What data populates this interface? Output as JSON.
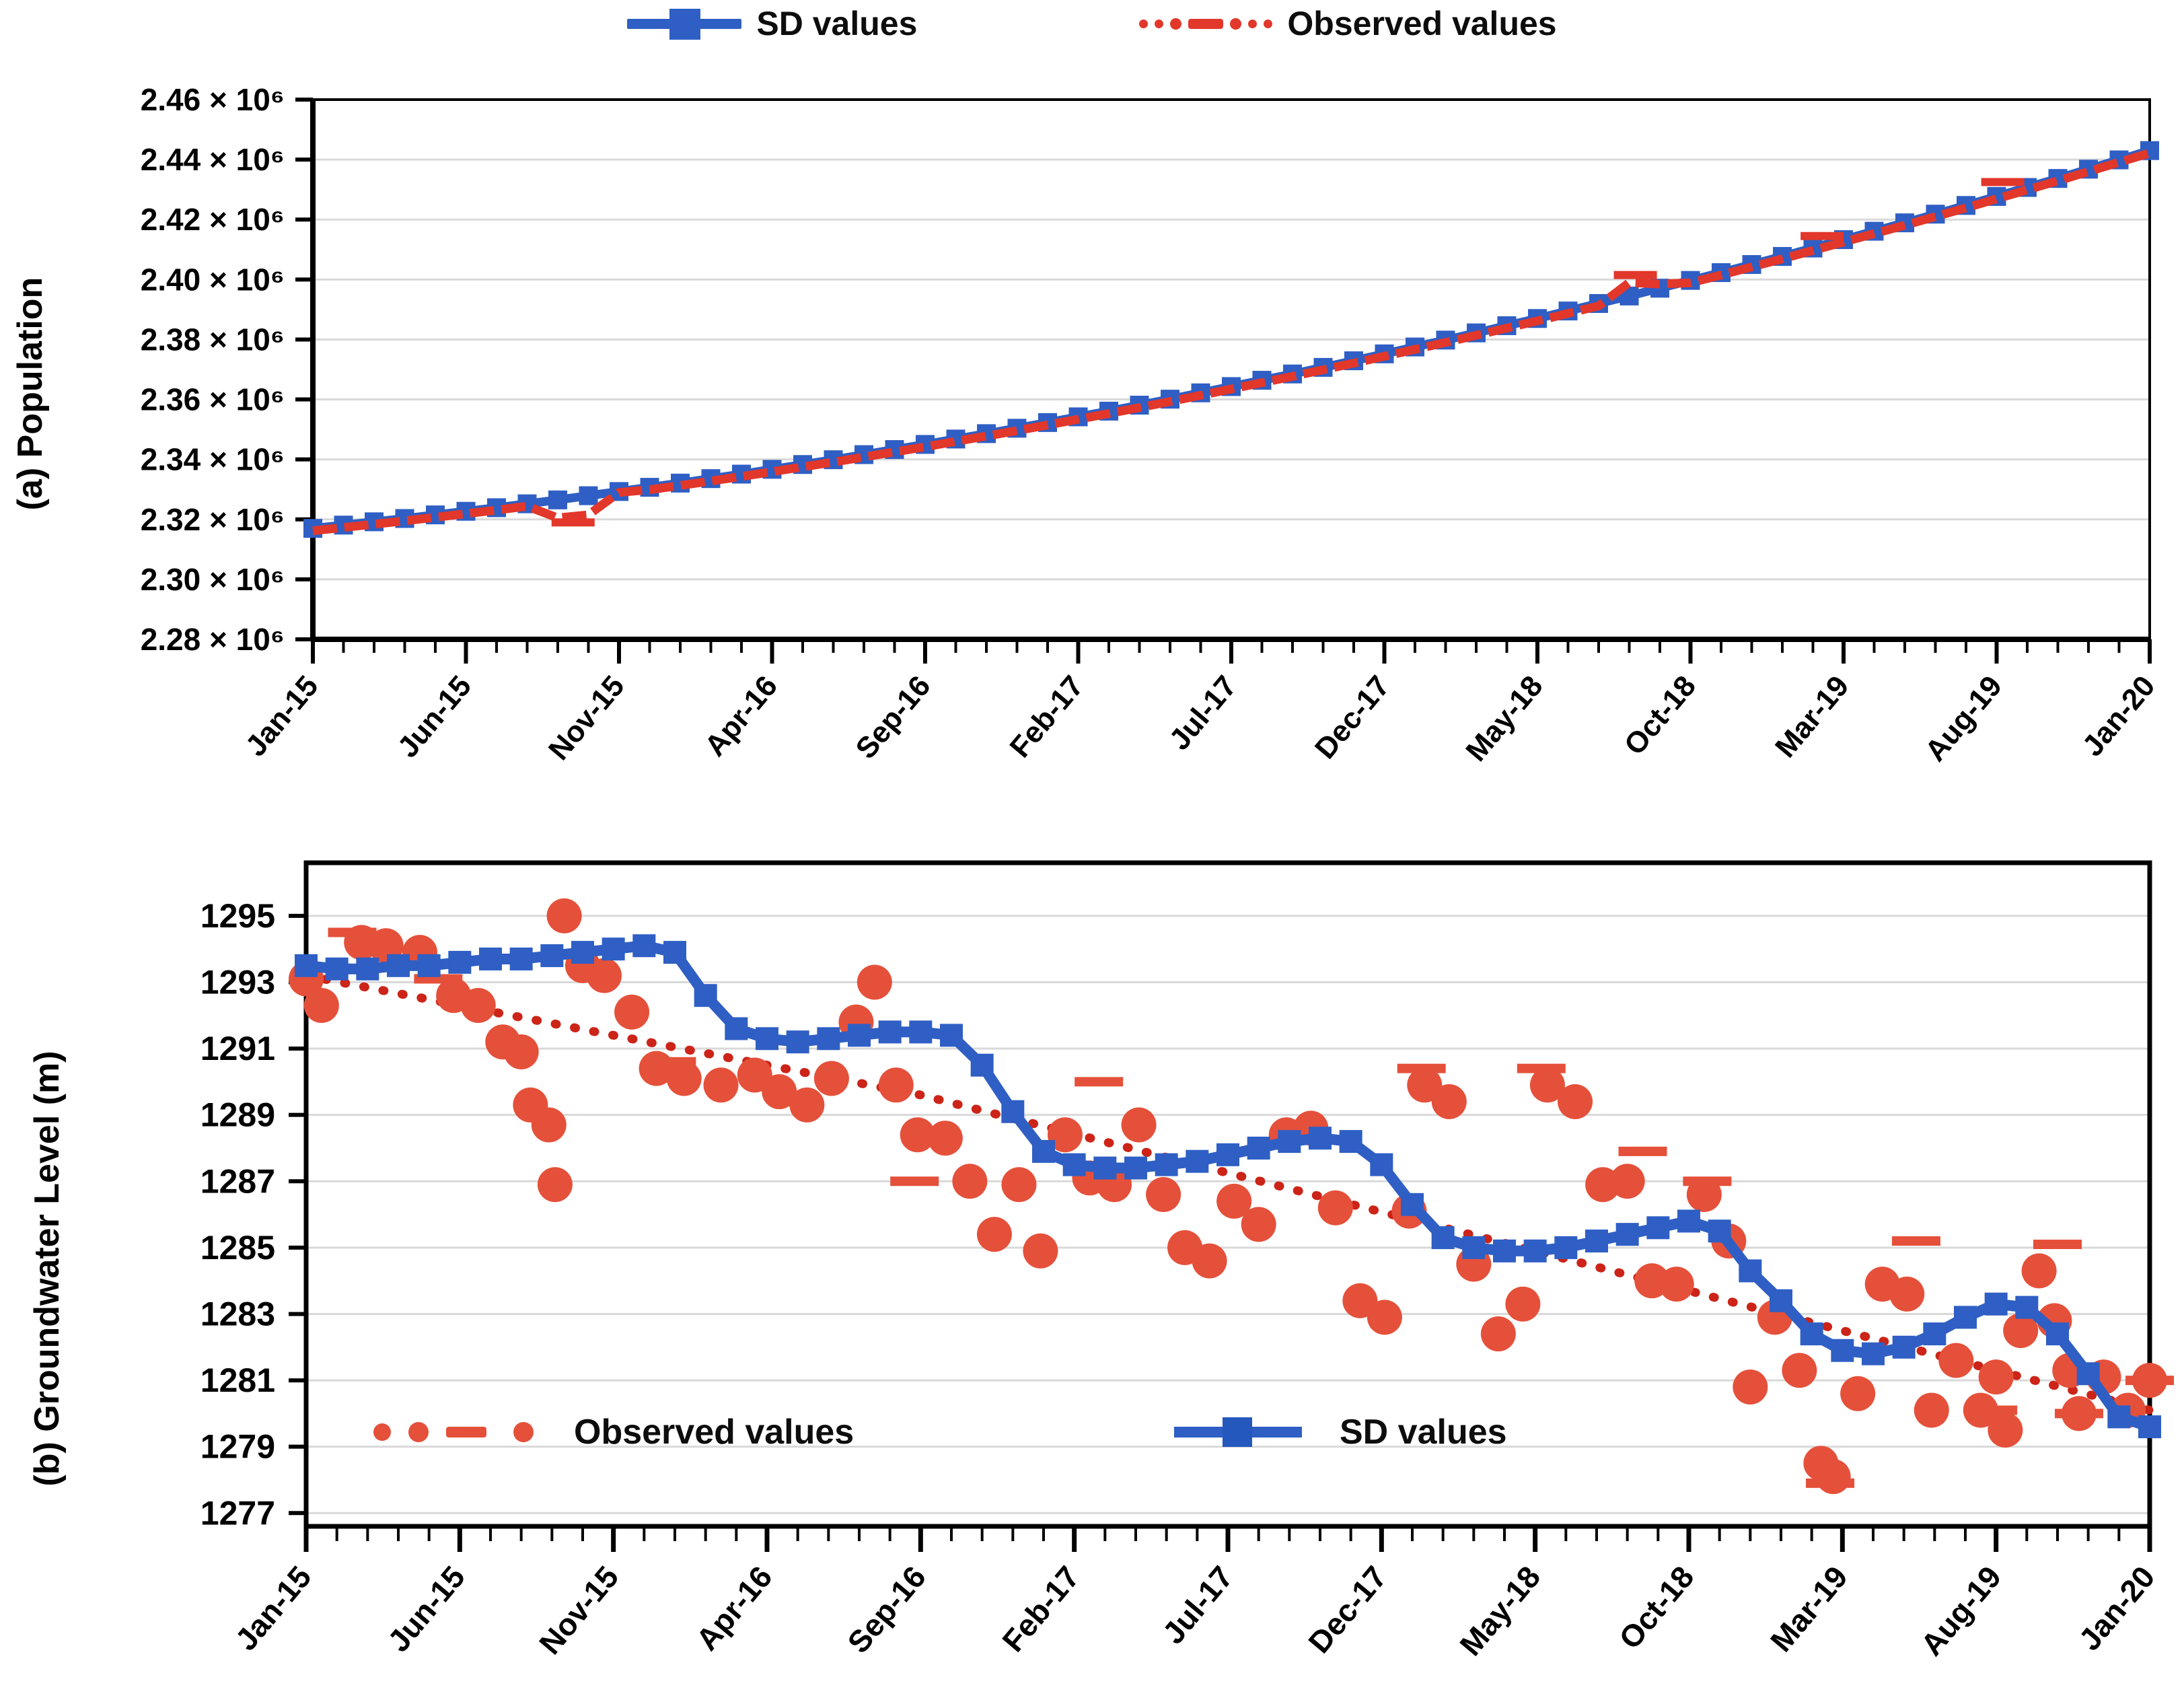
{
  "figure": {
    "legend_top": {
      "sd_label": "SD values",
      "observed_label": "Observed values"
    },
    "legend_bottom": {
      "observed_label": "Observed values",
      "sd_label": "SD values"
    },
    "colors": {
      "sd_blue": "#2f5fc4",
      "observed_red": "#e5503a",
      "trend_red": "#cc2418",
      "grid": "#d9d9d9",
      "axis": "#000000"
    }
  },
  "chart_data": [
    {
      "id": "population",
      "type": "line",
      "ylabel": "(a) Population",
      "ylim": [
        2.28,
        2.46
      ],
      "ytick_step": 0.02,
      "ytick_labels": [
        "2.46 × 10⁶",
        "2.44 × 10⁶",
        "2.42 × 10⁶",
        "2.40 × 10⁶",
        "2.38 × 10⁶",
        "2.36 × 10⁶",
        "2.34 × 10⁶",
        "2.32 × 10⁶",
        "2.30 × 10⁶",
        "2.28 × 10⁶"
      ],
      "x_tick_labels": [
        "Jan-15",
        "Jun-15",
        "Nov-15",
        "Apr-16",
        "Sep-16",
        "Feb-17",
        "Jul-17",
        "Dec-17",
        "May-18",
        "Oct-18",
        "Mar-19",
        "Aug-19",
        "Jan-20"
      ],
      "months_per_label": 5,
      "legend_position": "top",
      "grid": true,
      "series": [
        {
          "name": "SD values",
          "color": "#2f5fc4",
          "marker": "square",
          "style": "solid",
          "values": [
            2.317,
            2.3181,
            2.3192,
            2.3203,
            2.3215,
            2.3227,
            2.3239,
            2.3252,
            2.3265,
            2.3279,
            2.3293,
            2.3307,
            2.3321,
            2.3336,
            2.3351,
            2.3367,
            2.3383,
            2.3399,
            2.3416,
            2.3433,
            2.345,
            2.3468,
            2.3486,
            2.3504,
            2.3523,
            2.3542,
            2.3561,
            2.3581,
            2.3601,
            2.3622,
            2.3643,
            2.3664,
            2.3685,
            2.3707,
            2.3729,
            2.3752,
            2.3775,
            2.3798,
            2.3822,
            2.3846,
            2.387,
            2.3895,
            2.392,
            2.3945,
            2.3971,
            2.3997,
            2.4023,
            2.405,
            2.4077,
            2.4105,
            2.4133,
            2.4161,
            2.4189,
            2.4218,
            2.4247,
            2.4277,
            2.4307,
            2.4337,
            2.4368,
            2.4399,
            2.443
          ]
        },
        {
          "name": "Observed values",
          "color": "#e2372b",
          "marker": "none",
          "style": "dashed",
          "values": [
            2.3162,
            2.3173,
            2.3184,
            2.3195,
            2.3207,
            2.3219,
            2.3231,
            2.3244,
            2.3205,
            2.3215,
            2.329,
            2.3299,
            2.3313,
            2.3328,
            2.3343,
            2.3359,
            2.3375,
            2.3391,
            2.3408,
            2.3425,
            2.3442,
            2.346,
            2.3478,
            2.3496,
            2.3515,
            2.3534,
            2.3553,
            2.3573,
            2.3593,
            2.3614,
            2.3635,
            2.3656,
            2.3677,
            2.3699,
            2.3721,
            2.3744,
            2.3767,
            2.379,
            2.3814,
            2.3838,
            2.3862,
            2.3887,
            2.3912,
            2.399,
            2.3985,
            2.3989,
            2.4015,
            2.4042,
            2.4069,
            2.4097,
            2.4125,
            2.4153,
            2.4181,
            2.421,
            2.4239,
            2.4269,
            2.4299,
            2.4329,
            2.436,
            2.4391,
            2.4422
          ]
        }
      ],
      "dash_markers": [
        [
          8.5,
          2.319
        ],
        [
          43.2,
          2.4015
        ],
        [
          49.3,
          2.4145
        ],
        [
          55.2,
          2.4325
        ]
      ]
    },
    {
      "id": "groundwater",
      "type": "scatter+line",
      "ylabel": "(b) Groundwater Level (m)",
      "ylim": [
        1276.6,
        1296.6
      ],
      "ytick_values": [
        1295,
        1293,
        1291,
        1289,
        1287,
        1285,
        1283,
        1281,
        1279,
        1277
      ],
      "x_tick_labels": [
        "Jan-15",
        "Jun-15",
        "Nov-15",
        "Apr-16",
        "Sep-16",
        "Feb-17",
        "Jul-17",
        "Dec-17",
        "May-18",
        "Oct-18",
        "Mar-19",
        "Aug-19",
        "Jan-20"
      ],
      "months_per_label": 5,
      "legend_position": "inside-bottom",
      "grid": true,
      "series": [
        {
          "name": "SD values",
          "color": "#2f5fc4",
          "marker": "square",
          "style": "solid",
          "values": [
            1293.5,
            1293.4,
            1293.4,
            1293.5,
            1293.5,
            1293.6,
            1293.7,
            1293.7,
            1293.8,
            1293.9,
            1294.0,
            1294.1,
            1293.9,
            1292.6,
            1291.6,
            1291.3,
            1291.2,
            1291.3,
            1291.4,
            1291.5,
            1291.5,
            1291.4,
            1290.5,
            1289.1,
            1287.9,
            1287.5,
            1287.4,
            1287.4,
            1287.5,
            1287.6,
            1287.8,
            1288.0,
            1288.2,
            1288.3,
            1288.2,
            1287.5,
            1286.3,
            1285.3,
            1285.0,
            1284.9,
            1284.9,
            1285.0,
            1285.2,
            1285.4,
            1285.6,
            1285.8,
            1285.5,
            1284.3,
            1283.4,
            1282.4,
            1281.9,
            1281.8,
            1282.0,
            1282.4,
            1282.9,
            1283.3,
            1283.2,
            1282.4,
            1281.2,
            1279.9,
            1279.6
          ]
        },
        {
          "name": "Observed values",
          "color": "#e5503a",
          "marker": "dot",
          "style": "scatter",
          "points": [
            [
              0.0,
              1293.1
            ],
            [
              0.5,
              1292.3
            ],
            [
              1.8,
              1294.2
            ],
            [
              2.6,
              1294.1
            ],
            [
              3.7,
              1293.9
            ],
            [
              4.8,
              1292.6
            ],
            [
              5.6,
              1292.3
            ],
            [
              6.4,
              1291.2
            ],
            [
              7.0,
              1290.9
            ],
            [
              7.3,
              1289.3
            ],
            [
              7.9,
              1288.7
            ],
            [
              8.1,
              1286.9
            ],
            [
              8.4,
              1295.0
            ],
            [
              9.0,
              1293.5
            ],
            [
              9.7,
              1293.2
            ],
            [
              10.6,
              1292.1
            ],
            [
              11.4,
              1290.4
            ],
            [
              12.3,
              1290.1
            ],
            [
              13.5,
              1289.9
            ],
            [
              14.6,
              1290.2
            ],
            [
              15.4,
              1289.7
            ],
            [
              16.3,
              1289.3
            ],
            [
              17.1,
              1290.1
            ],
            [
              17.9,
              1291.8
            ],
            [
              18.5,
              1293.0
            ],
            [
              19.2,
              1289.9
            ],
            [
              19.9,
              1288.4
            ],
            [
              20.8,
              1288.3
            ],
            [
              21.6,
              1287.0
            ],
            [
              22.4,
              1285.4
            ],
            [
              23.2,
              1286.9
            ],
            [
              23.9,
              1284.9
            ],
            [
              24.7,
              1288.4
            ],
            [
              25.5,
              1287.1
            ],
            [
              26.3,
              1286.9
            ],
            [
              27.1,
              1288.7
            ],
            [
              27.9,
              1286.6
            ],
            [
              28.6,
              1285.0
            ],
            [
              29.4,
              1284.6
            ],
            [
              30.2,
              1286.4
            ],
            [
              31.0,
              1285.7
            ],
            [
              31.9,
              1288.4
            ],
            [
              32.7,
              1288.6
            ],
            [
              33.5,
              1286.2
            ],
            [
              34.3,
              1283.4
            ],
            [
              35.1,
              1282.9
            ],
            [
              35.9,
              1286.1
            ],
            [
              36.4,
              1289.9
            ],
            [
              37.2,
              1289.4
            ],
            [
              38.0,
              1284.5
            ],
            [
              38.8,
              1282.4
            ],
            [
              39.6,
              1283.3
            ],
            [
              40.4,
              1289.9
            ],
            [
              41.3,
              1289.4
            ],
            [
              42.2,
              1286.9
            ],
            [
              43.0,
              1287.0
            ],
            [
              43.8,
              1284.0
            ],
            [
              44.6,
              1283.9
            ],
            [
              45.5,
              1286.6
            ],
            [
              46.3,
              1285.2
            ],
            [
              47.0,
              1280.8
            ],
            [
              47.8,
              1282.9
            ],
            [
              48.6,
              1281.3
            ],
            [
              49.3,
              1278.5
            ],
            [
              49.7,
              1278.1
            ],
            [
              50.5,
              1280.6
            ],
            [
              51.3,
              1283.9
            ],
            [
              52.1,
              1283.6
            ],
            [
              52.9,
              1280.1
            ],
            [
              53.7,
              1281.6
            ],
            [
              54.5,
              1280.1
            ],
            [
              55.0,
              1281.1
            ],
            [
              55.3,
              1279.5
            ],
            [
              55.8,
              1282.5
            ],
            [
              56.4,
              1284.3
            ],
            [
              56.9,
              1282.8
            ],
            [
              57.4,
              1281.3
            ],
            [
              57.7,
              1280.0
            ],
            [
              58.5,
              1281.1
            ],
            [
              59.3,
              1280.1
            ],
            [
              60.0,
              1281.0
            ]
          ]
        }
      ],
      "trend": {
        "color": "#cc2418",
        "style": "dotted",
        "points": [
          [
            0,
            1293.2
          ],
          [
            20,
            1289.6
          ],
          [
            40,
            1284.9
          ],
          [
            60,
            1280.1
          ]
        ]
      },
      "dash_markers": [
        [
          1.5,
          1294.5
        ],
        [
          4.3,
          1293.1
        ],
        [
          11.9,
          1290.6
        ],
        [
          15.9,
          1289.4
        ],
        [
          19.8,
          1287.0
        ],
        [
          25.8,
          1290.0
        ],
        [
          36.3,
          1290.4
        ],
        [
          40.2,
          1290.4
        ],
        [
          43.5,
          1287.9
        ],
        [
          45.6,
          1287.0
        ],
        [
          49.6,
          1277.9
        ],
        [
          52.4,
          1285.2
        ],
        [
          54.9,
          1280.1
        ],
        [
          57.0,
          1285.1
        ],
        [
          57.7,
          1280.0
        ],
        [
          60.0,
          1281.0
        ]
      ]
    }
  ]
}
